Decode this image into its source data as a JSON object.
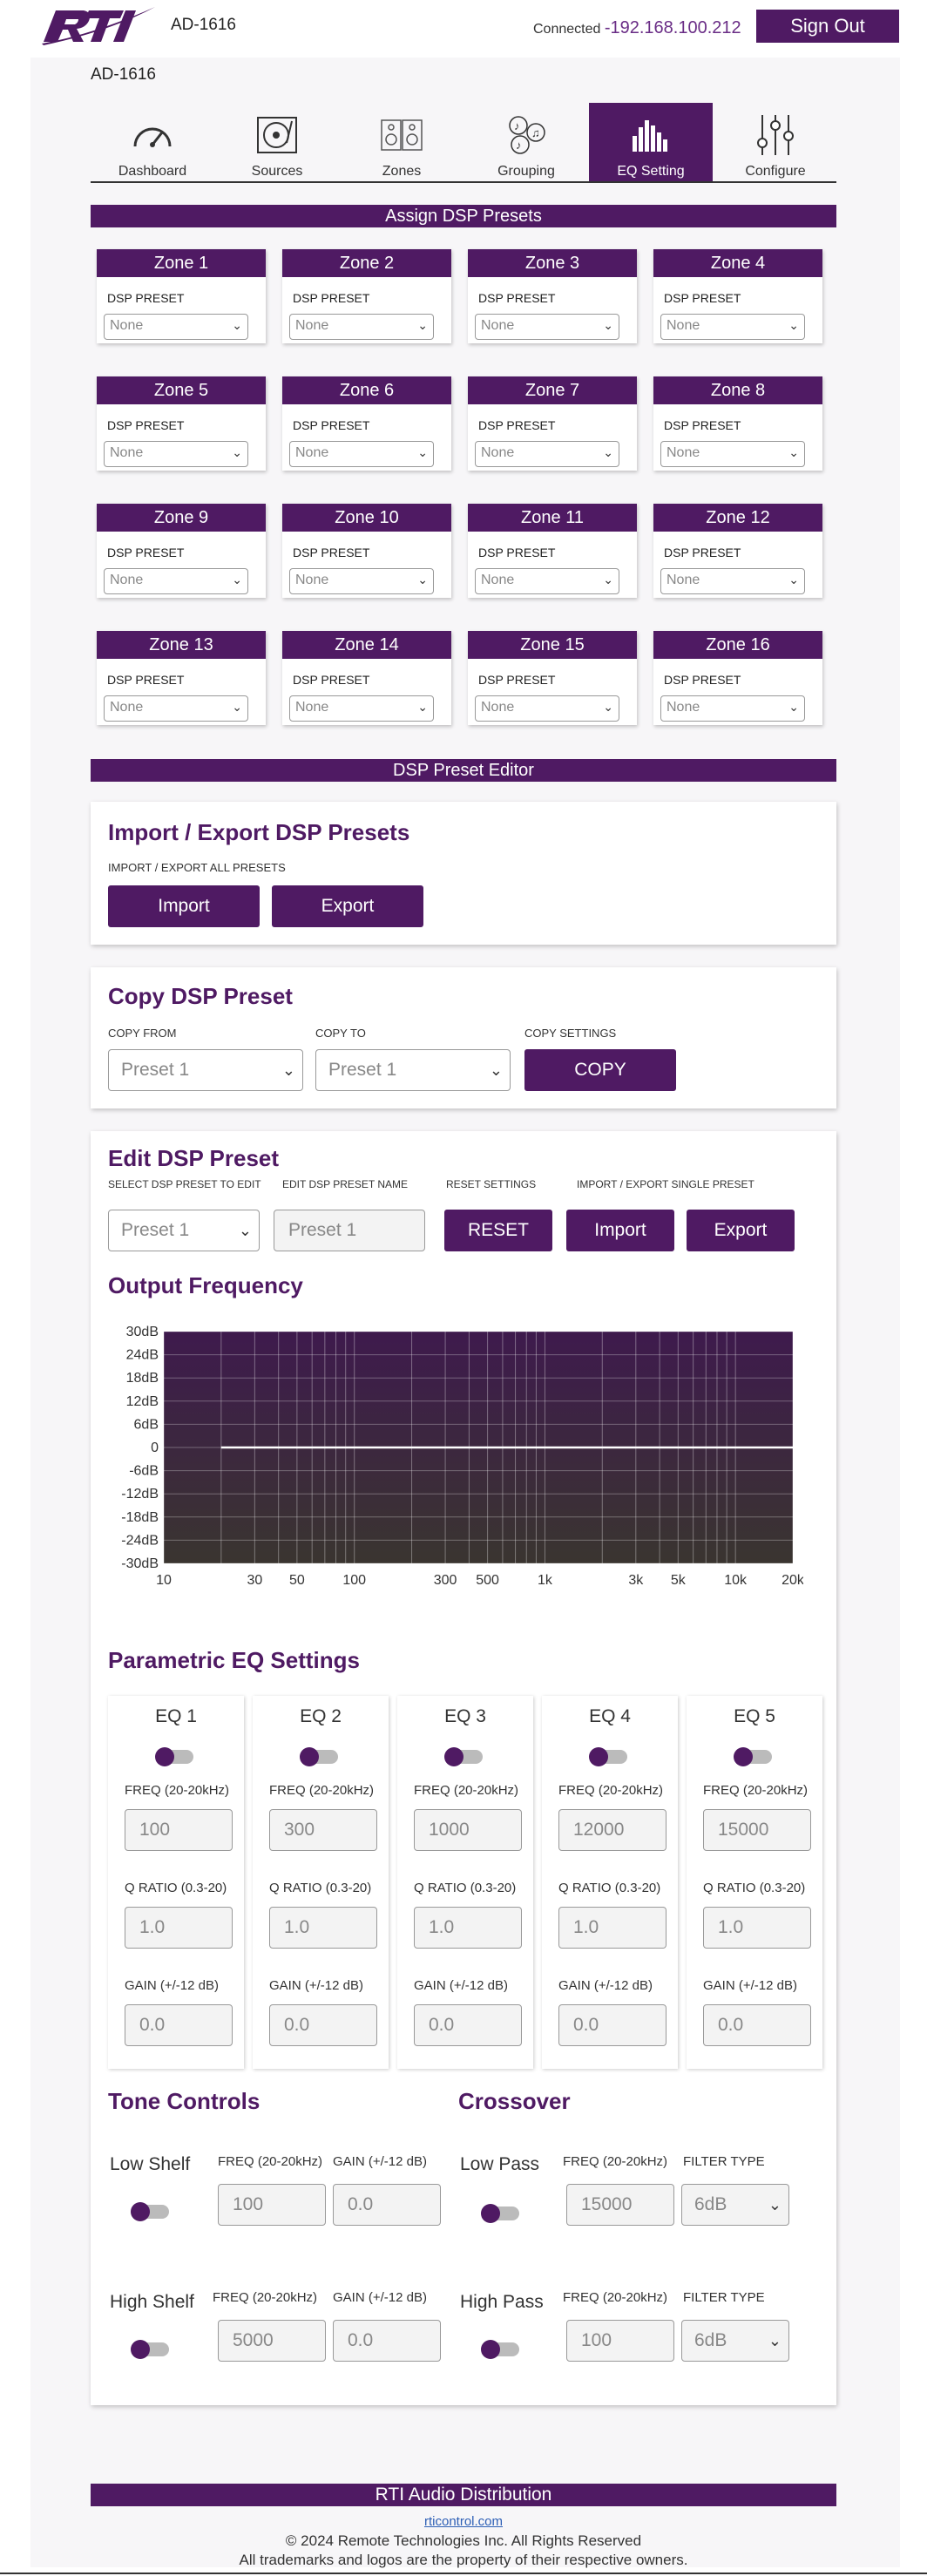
{
  "header": {
    "device_name": "AD-1616",
    "connected_label": "Connected",
    "ip": "-192.168.100.212",
    "sign_out": "Sign Out",
    "brand_color": "#4f1a63"
  },
  "panel_title": "AD-1616",
  "tabs": [
    {
      "label": "Dashboard",
      "icon": "gauge-icon"
    },
    {
      "label": "Sources",
      "icon": "turntable-icon"
    },
    {
      "label": "Zones",
      "icon": "speaker-icon"
    },
    {
      "label": "Grouping",
      "icon": "music-notes-icon"
    },
    {
      "label": "EQ Setting",
      "icon": "equalizer-bars-icon",
      "active": true
    },
    {
      "label": "Configure",
      "icon": "sliders-icon"
    }
  ],
  "assign": {
    "title": "Assign DSP Presets",
    "preset_label": "DSP PRESET",
    "zones": [
      {
        "name": "Zone 1",
        "preset": "None"
      },
      {
        "name": "Zone 2",
        "preset": "None"
      },
      {
        "name": "Zone 3",
        "preset": "None"
      },
      {
        "name": "Zone 4",
        "preset": "None"
      },
      {
        "name": "Zone 5",
        "preset": "None"
      },
      {
        "name": "Zone 6",
        "preset": "None"
      },
      {
        "name": "Zone 7",
        "preset": "None"
      },
      {
        "name": "Zone 8",
        "preset": "None"
      },
      {
        "name": "Zone 9",
        "preset": "None"
      },
      {
        "name": "Zone 10",
        "preset": "None"
      },
      {
        "name": "Zone 11",
        "preset": "None"
      },
      {
        "name": "Zone 12",
        "preset": "None"
      },
      {
        "name": "Zone 13",
        "preset": "None"
      },
      {
        "name": "Zone 14",
        "preset": "None"
      },
      {
        "name": "Zone 15",
        "preset": "None"
      },
      {
        "name": "Zone 16",
        "preset": "None"
      }
    ]
  },
  "editor_title": "DSP Preset Editor",
  "import_export": {
    "title": "Import / Export DSP Presets",
    "sub": "IMPORT / EXPORT ALL PRESETS",
    "import": "Import",
    "export": "Export"
  },
  "copy": {
    "title": "Copy DSP Preset",
    "from_label": "COPY FROM",
    "to_label": "COPY TO",
    "settings_label": "COPY SETTINGS",
    "from_value": "Preset 1",
    "to_value": "Preset 1",
    "button": "COPY"
  },
  "edit": {
    "title": "Edit DSP Preset",
    "select_label": "SELECT DSP PRESET TO EDIT",
    "name_label": "EDIT DSP PRESET NAME",
    "reset_label": "RESET SETTINGS",
    "single_label": "IMPORT / EXPORT SINGLE PRESET",
    "select_value": "Preset 1",
    "name_value": "Preset 1",
    "reset": "RESET",
    "import": "Import",
    "export": "Export",
    "output_title": "Output Frequency"
  },
  "chart_data": {
    "type": "line",
    "title": "Output Frequency",
    "y_ticks": [
      "30dB",
      "24dB",
      "18dB",
      "12dB",
      "6dB",
      "0",
      "-6dB",
      "-12dB",
      "-18dB",
      "-24dB",
      "-30dB"
    ],
    "x_ticks": [
      "10",
      "30",
      "50",
      "100",
      "300",
      "500",
      "1k",
      "3k",
      "5k",
      "10k",
      "20k"
    ],
    "x_scale": "log",
    "xlim": [
      10,
      20000
    ],
    "ylim": [
      -30,
      30
    ],
    "series": [
      {
        "x": [
          20,
          20000
        ],
        "y": [
          0,
          0
        ]
      }
    ]
  },
  "peq": {
    "title": "Parametric EQ Settings",
    "freq_label": "FREQ (20-20kHz)",
    "q_label": "Q RATIO (0.3-20)",
    "gain_label": "GAIN (+/-12 dB)",
    "bands": [
      {
        "name": "EQ 1",
        "freq": "100",
        "q": "1.0",
        "gain": "0.0"
      },
      {
        "name": "EQ 2",
        "freq": "300",
        "q": "1.0",
        "gain": "0.0"
      },
      {
        "name": "EQ 3",
        "freq": "1000",
        "q": "1.0",
        "gain": "0.0"
      },
      {
        "name": "EQ 4",
        "freq": "12000",
        "q": "1.0",
        "gain": "0.0"
      },
      {
        "name": "EQ 5",
        "freq": "15000",
        "q": "1.0",
        "gain": "0.0"
      }
    ]
  },
  "tone": {
    "title": "Tone Controls",
    "freq_label": "FREQ (20-20kHz)",
    "gain_label": "GAIN (+/-12 dB)",
    "low_label": "Low Shelf",
    "low_freq": "100",
    "low_gain": "0.0",
    "high_label": "High Shelf",
    "high_freq": "5000",
    "high_gain": "0.0"
  },
  "crossover": {
    "title": "Crossover",
    "freq_label": "FREQ (20-20kHz)",
    "type_label": "FILTER TYPE",
    "low_label": "Low Pass",
    "low_freq": "15000",
    "low_type": "6dB",
    "high_label": "High Pass",
    "high_freq": "100",
    "high_type": "6dB"
  },
  "footer": {
    "bar": "RTI Audio Distribution",
    "link": "rticontrol.com",
    "copyright": "© 2024 Remote Technologies Inc. All Rights Reserved",
    "trademark": "All trademarks and logos are the property of their respective owners."
  }
}
